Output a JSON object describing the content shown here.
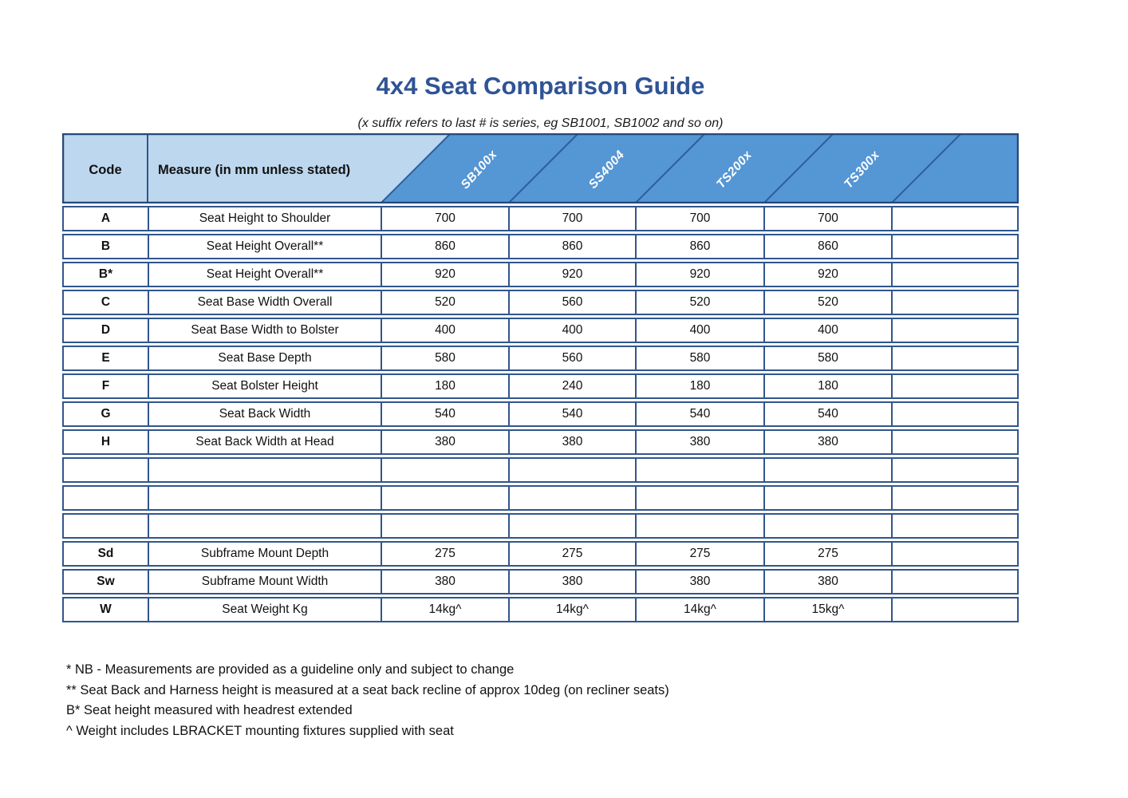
{
  "title": "4x4 Seat Comparison Guide",
  "subtitle": "(x suffix refers to last # is series, eg SB1001, SB1002 and so on)",
  "colors": {
    "title_text": "#2F5496",
    "header_light_blue": "#BDD7EE",
    "header_medium_blue": "#5596D4",
    "diagonal_line": "#2C5E9E",
    "table_border": "#31568C",
    "header_label_text": "#ffffff"
  },
  "table": {
    "code_header": "Code",
    "measure_header": "Measure (in mm unless stated)",
    "series": [
      "SB100x",
      "SS4004",
      "TS200x",
      "TS300x"
    ],
    "rows": [
      {
        "code": "A",
        "measure": "Seat Height to Shoulder",
        "values": [
          "700",
          "700",
          "700",
          "700"
        ]
      },
      {
        "code": "B",
        "measure": "Seat Height Overall**",
        "values": [
          "860",
          "860",
          "860",
          "860"
        ]
      },
      {
        "code": "B*",
        "measure": "Seat Height Overall**",
        "values": [
          "920",
          "920",
          "920",
          "920"
        ]
      },
      {
        "code": "C",
        "measure": "Seat Base Width Overall",
        "values": [
          "520",
          "560",
          "520",
          "520"
        ]
      },
      {
        "code": "D",
        "measure": "Seat Base Width to Bolster",
        "values": [
          "400",
          "400",
          "400",
          "400"
        ]
      },
      {
        "code": "E",
        "measure": "Seat Base Depth",
        "values": [
          "580",
          "560",
          "580",
          "580"
        ]
      },
      {
        "code": "F",
        "measure": "Seat Bolster Height",
        "values": [
          "180",
          "240",
          "180",
          "180"
        ]
      },
      {
        "code": "G",
        "measure": "Seat Back Width",
        "values": [
          "540",
          "540",
          "540",
          "540"
        ]
      },
      {
        "code": "H",
        "measure": "Seat Back Width at Head",
        "values": [
          "380",
          "380",
          "380",
          "380"
        ]
      },
      {
        "code": "",
        "measure": "",
        "values": [
          "",
          "",
          "",
          ""
        ]
      },
      {
        "code": "",
        "measure": "",
        "values": [
          "",
          "",
          "",
          ""
        ]
      },
      {
        "code": "",
        "measure": "",
        "values": [
          "",
          "",
          "",
          ""
        ]
      },
      {
        "code": "Sd",
        "measure": "Subframe Mount Depth",
        "values": [
          "275",
          "275",
          "275",
          "275"
        ]
      },
      {
        "code": "Sw",
        "measure": "Subframe Mount Width",
        "values": [
          "380",
          "380",
          "380",
          "380"
        ]
      },
      {
        "code": "W",
        "measure": "Seat Weight Kg",
        "values": [
          "14kg^",
          "14kg^",
          "14kg^",
          "15kg^"
        ]
      }
    ]
  },
  "footnotes": [
    "* NB - Measurements are provided as a guideline only and subject to change",
    "** Seat Back and Harness height is measured at a seat back recline of approx 10deg (on recliner seats)",
    "B* Seat height measured with headrest extended",
    "^ Weight includes LBRACKET mounting fixtures supplied with seat"
  ]
}
